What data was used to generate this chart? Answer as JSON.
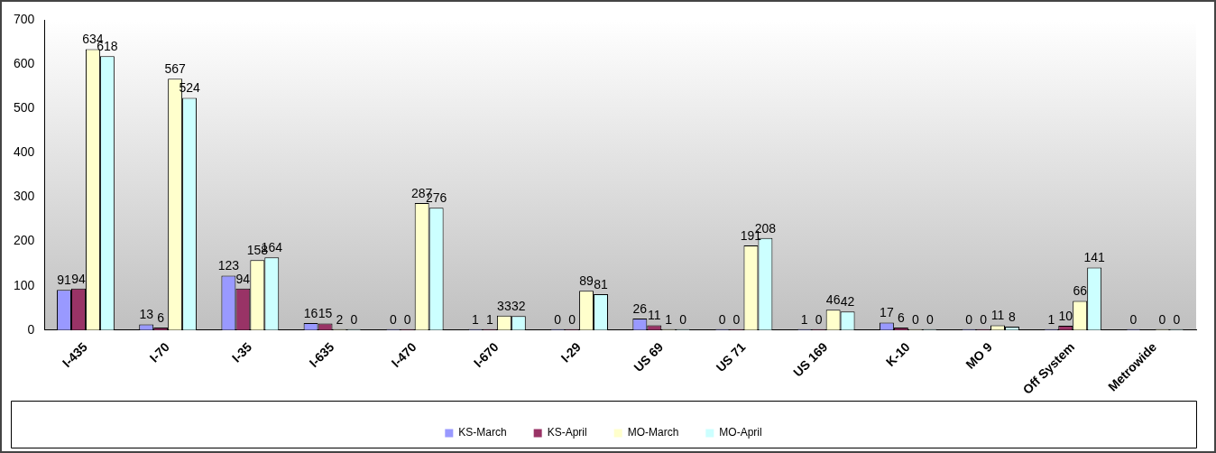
{
  "chart_data": {
    "type": "bar",
    "categories": [
      "I-435",
      "I-70",
      "I-35",
      "I-635",
      "I-470",
      "I-670",
      "I-29",
      "US 69",
      "US 71",
      "US 169",
      "K-10",
      "MO 9",
      "Off System",
      "Metrowide"
    ],
    "series": [
      {
        "name": "KS-March",
        "color": "#9999ff",
        "values": [
          91,
          13,
          123,
          16,
          0,
          1,
          0,
          26,
          0,
          1,
          17,
          0,
          1,
          0
        ]
      },
      {
        "name": "KS-April",
        "color": "#993366",
        "values": [
          94,
          6,
          94,
          15,
          0,
          1,
          0,
          11,
          0,
          0,
          6,
          0,
          10,
          null
        ]
      },
      {
        "name": "MO-March",
        "color": "#ffffcc",
        "values": [
          634,
          567,
          158,
          2,
          287,
          33,
          89,
          1,
          191,
          46,
          0,
          11,
          66,
          0
        ]
      },
      {
        "name": "MO-April",
        "color": "#ccffff",
        "values": [
          618,
          524,
          164,
          0,
          276,
          32,
          81,
          0,
          208,
          42,
          0,
          8,
          141,
          0
        ]
      }
    ],
    "ylim": [
      0,
      700
    ],
    "yticks": [
      0,
      100,
      200,
      300,
      400,
      500,
      600,
      700
    ],
    "data_labels": true,
    "legend": "bottom"
  }
}
